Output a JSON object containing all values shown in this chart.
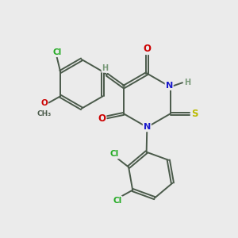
{
  "bg_color": "#ebebeb",
  "bond_color": "#4a5a4a",
  "atom_colors": {
    "O": "#cc0000",
    "N": "#1a1acc",
    "S": "#bbbb00",
    "Cl": "#22aa22",
    "H": "#7a9a7a",
    "C": "#4a5a4a"
  },
  "bond_width": 1.4,
  "font_size": 7.5
}
